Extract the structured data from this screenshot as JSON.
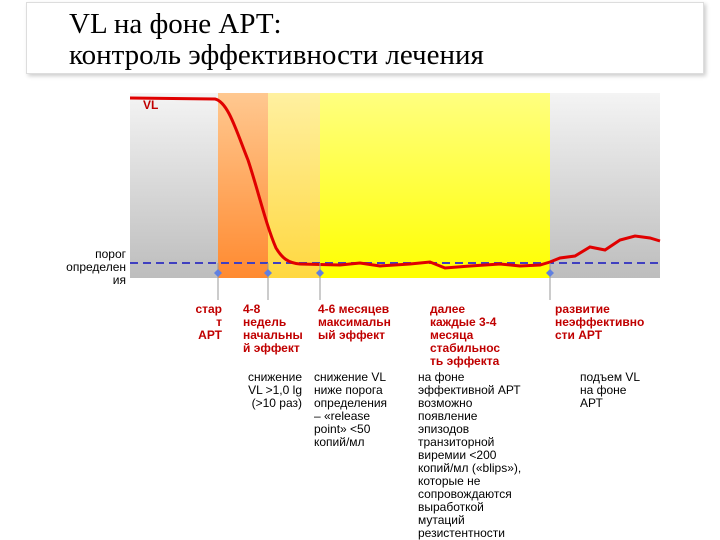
{
  "title": [
    "VL на фоне АРТ:",
    "контроль эффективности лечения"
  ],
  "chart_label": "VL",
  "threshold_label": [
    "порог",
    "определен",
    "ия"
  ],
  "columns": [
    {
      "heading": [
        "стар",
        "т",
        "АРТ"
      ],
      "description": []
    },
    {
      "heading": [
        "4-8",
        "недель",
        "начальны",
        "й эффект"
      ],
      "description": [
        "снижение",
        "VL >1,0 lg",
        "(>10 раз)"
      ]
    },
    {
      "heading": [
        "4-6 месяцев",
        "максимальн",
        "ый эффект"
      ],
      "description": [
        "снижение VL",
        "ниже порога",
        "определения",
        "– «release",
        "point» <50",
        "копий/мл"
      ]
    },
    {
      "heading": [
        "далее",
        "каждые 3-4",
        "месяца",
        "стабильнос",
        "ть эффекта"
      ],
      "description": [
        "на фоне",
        "эффективной АРТ",
        "возможно",
        "появление",
        "эпизодов",
        "транзиторной",
        "виремии <200",
        "копий/мл («blips»),",
        "которые не",
        "сопровождаются",
        "выработкой",
        "мутаций",
        "резистентности"
      ]
    },
    {
      "heading": [
        "развитие",
        "неэффективно",
        "сти АРТ"
      ],
      "description": [
        "подъем VL",
        "на фоне",
        "АРТ"
      ]
    }
  ]
}
